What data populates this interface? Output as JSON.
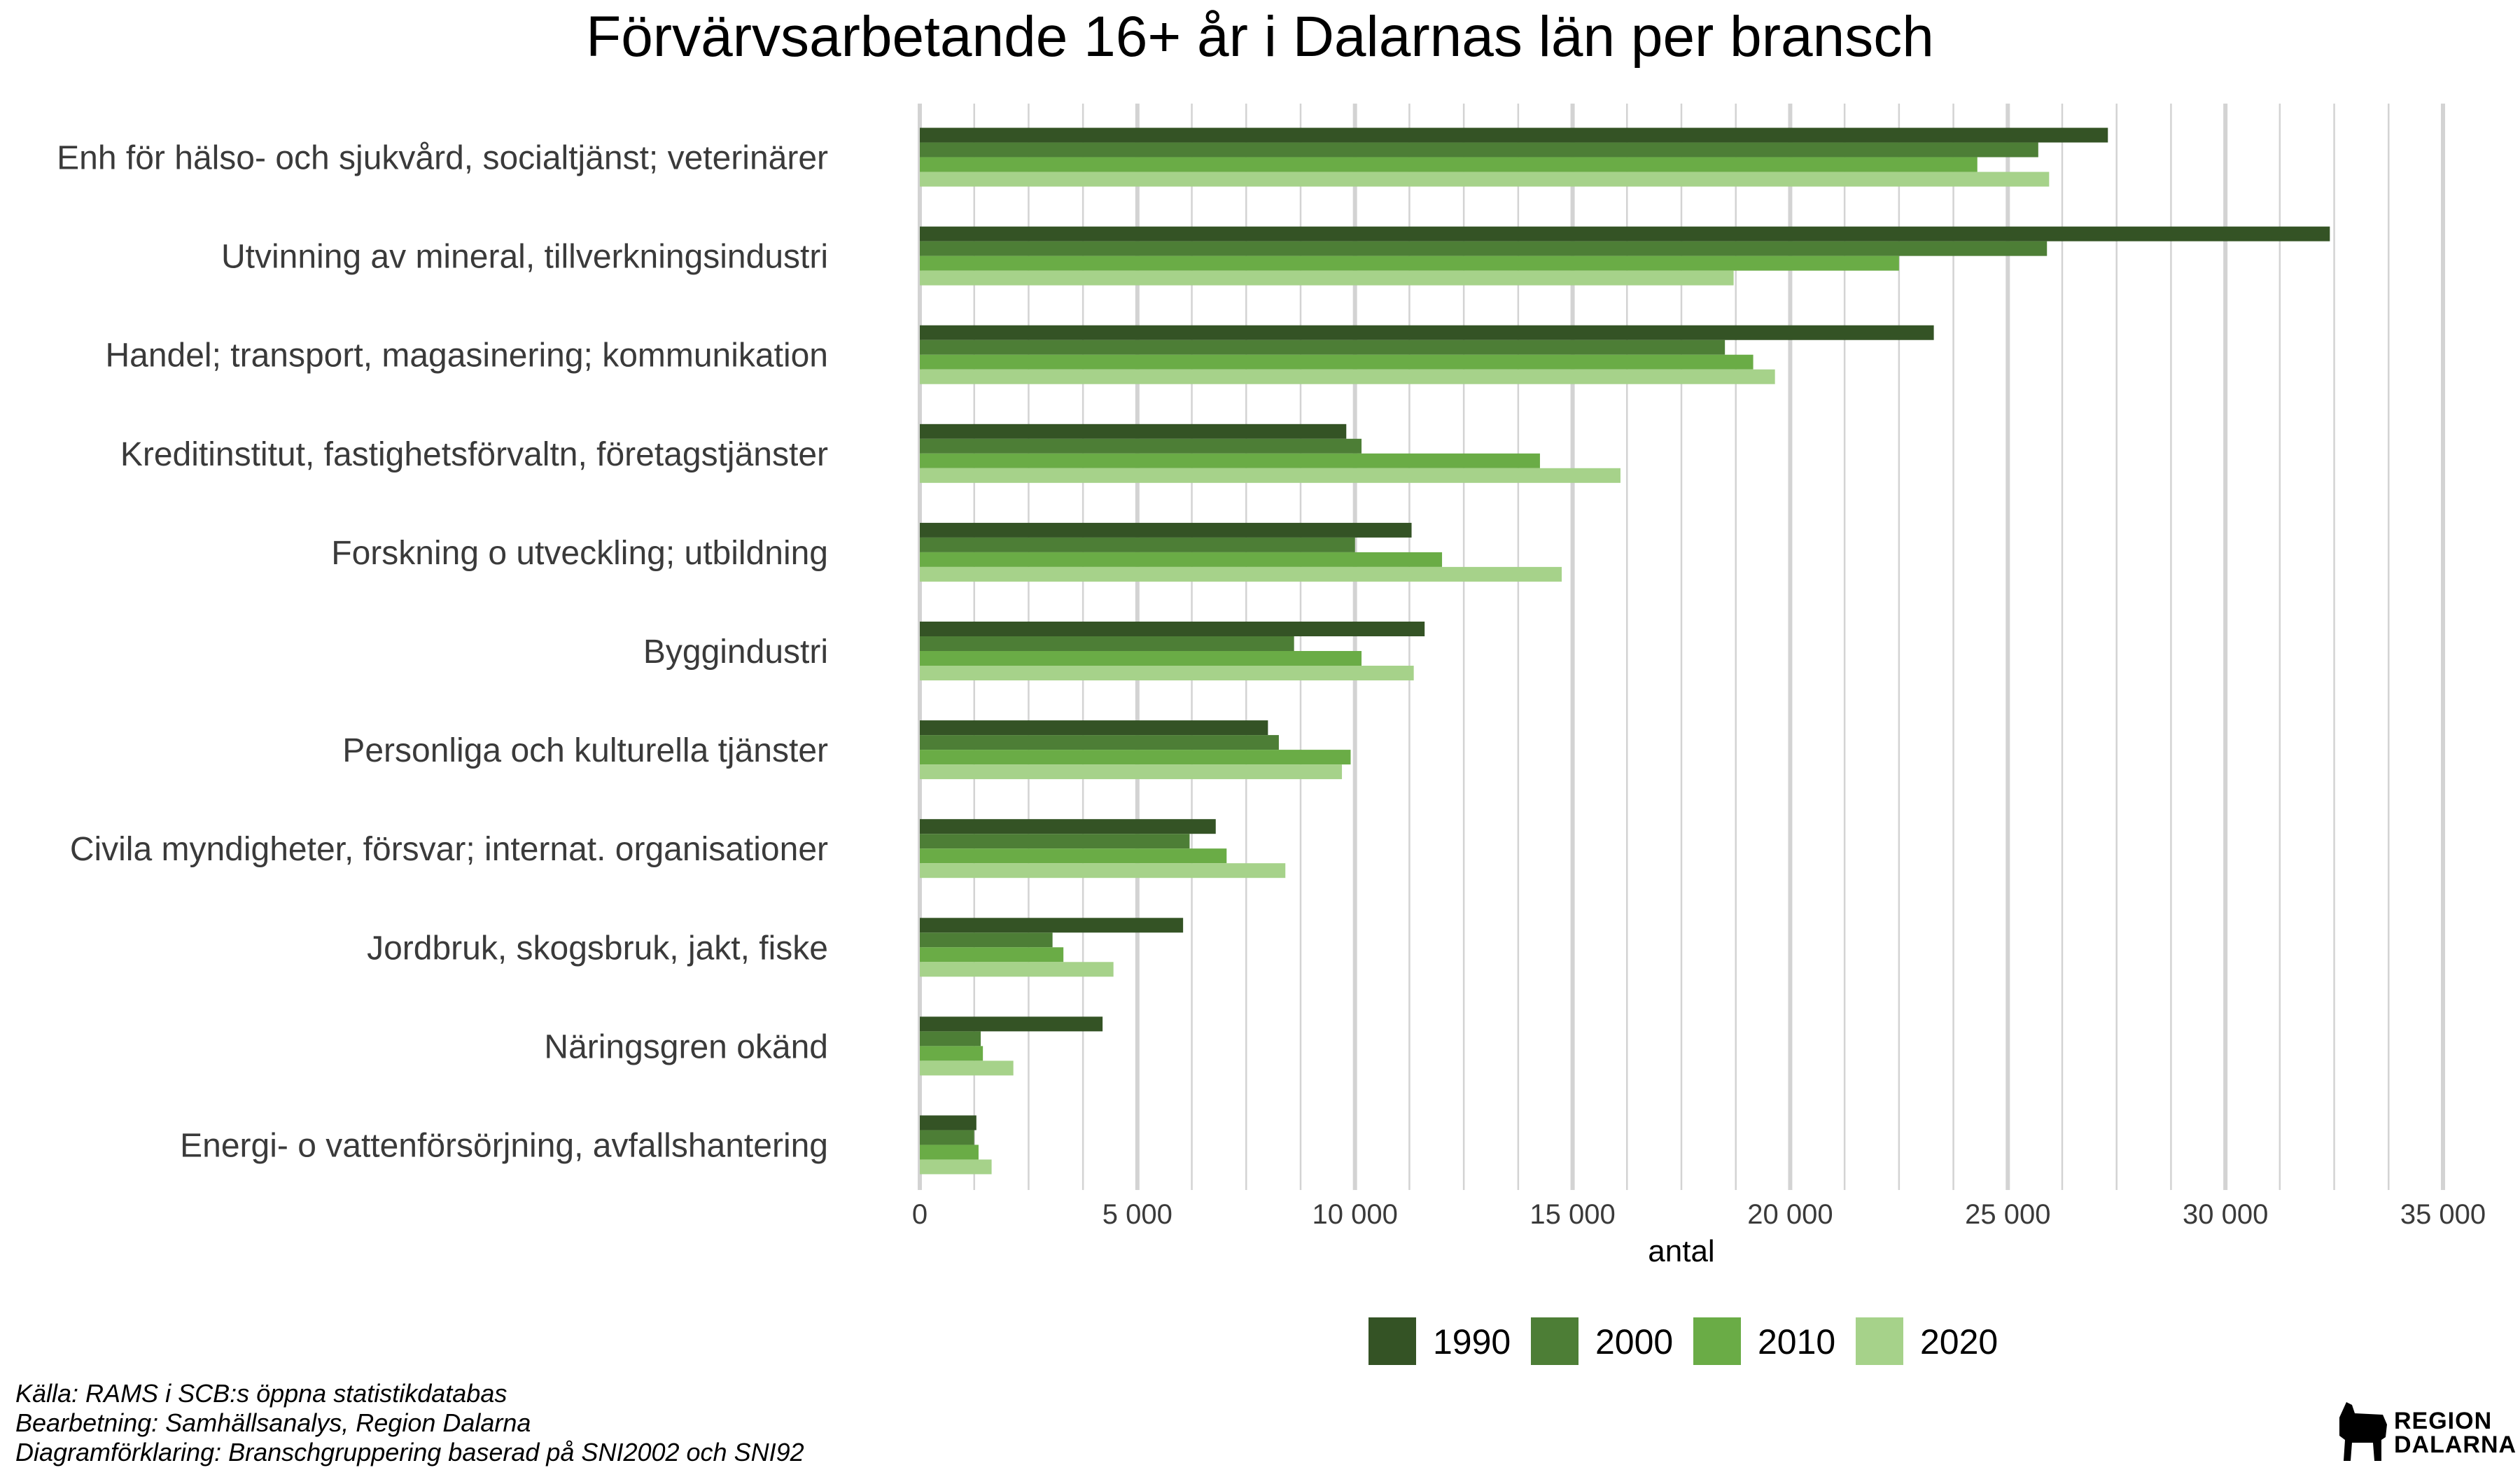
{
  "chart_data": {
    "type": "bar",
    "orientation": "horizontal",
    "title": "Förvärvsarbetande 16+ år i Dalarnas län per bransch",
    "xlabel": "antal",
    "ylabel": "",
    "xlim": [
      0,
      35000
    ],
    "x_ticks": [
      0,
      5000,
      10000,
      15000,
      20000,
      25000,
      30000,
      35000
    ],
    "x_tick_labels": [
      "0",
      "5 000",
      "10 000",
      "15 000",
      "20 000",
      "25 000",
      "30 000",
      "35 000"
    ],
    "grid": "vertical",
    "legend_position": "bottom",
    "categories": [
      "Enh för hälso- och sjukvård, socialtjänst; veterinärer",
      "Utvinning av mineral, tillverkningsindustri",
      "Handel; transport, magasinering; kommunikation",
      "Kreditinstitut, fastighetsförvaltn, företagstjänster",
      "Forskning o utveckling; utbildning",
      "Byggindustri",
      "Personliga och kulturella tjänster",
      "Civila myndigheter, försvar; internat. organisationer",
      "Jordbruk, skogsbruk, jakt, fiske",
      "Näringsgren okänd",
      "Energi- o vattenförsörjning, avfallshantering"
    ],
    "series": [
      {
        "name": "1990",
        "color": "#345325",
        "values": [
          27300,
          32400,
          23300,
          9800,
          11300,
          11600,
          8000,
          6800,
          6050,
          4200,
          1300
        ]
      },
      {
        "name": "2000",
        "color": "#4d7e36",
        "values": [
          25700,
          25900,
          18500,
          10150,
          10000,
          8600,
          8250,
          6200,
          3050,
          1400,
          1250
        ]
      },
      {
        "name": "2010",
        "color": "#6aac46",
        "values": [
          24300,
          22500,
          19150,
          14250,
          12000,
          10150,
          9900,
          7050,
          3300,
          1450,
          1350
        ]
      },
      {
        "name": "2020",
        "color": "#a6d28a",
        "values": [
          25950,
          18700,
          19650,
          16100,
          14750,
          11350,
          9700,
          8400,
          4450,
          2150,
          1650
        ]
      }
    ]
  },
  "caption": {
    "line1": "Källa: RAMS i SCB:s öppna statistikdatabas",
    "line2": "Bearbetning: Samhällsanalys, Region Dalarna",
    "line3": "Diagramförklaring: Branschgruppering baserad på SNI2002 och SNI92"
  },
  "logo": {
    "icon": "dala-horse-icon",
    "line1": "REGION",
    "line2": "DALARNA"
  }
}
